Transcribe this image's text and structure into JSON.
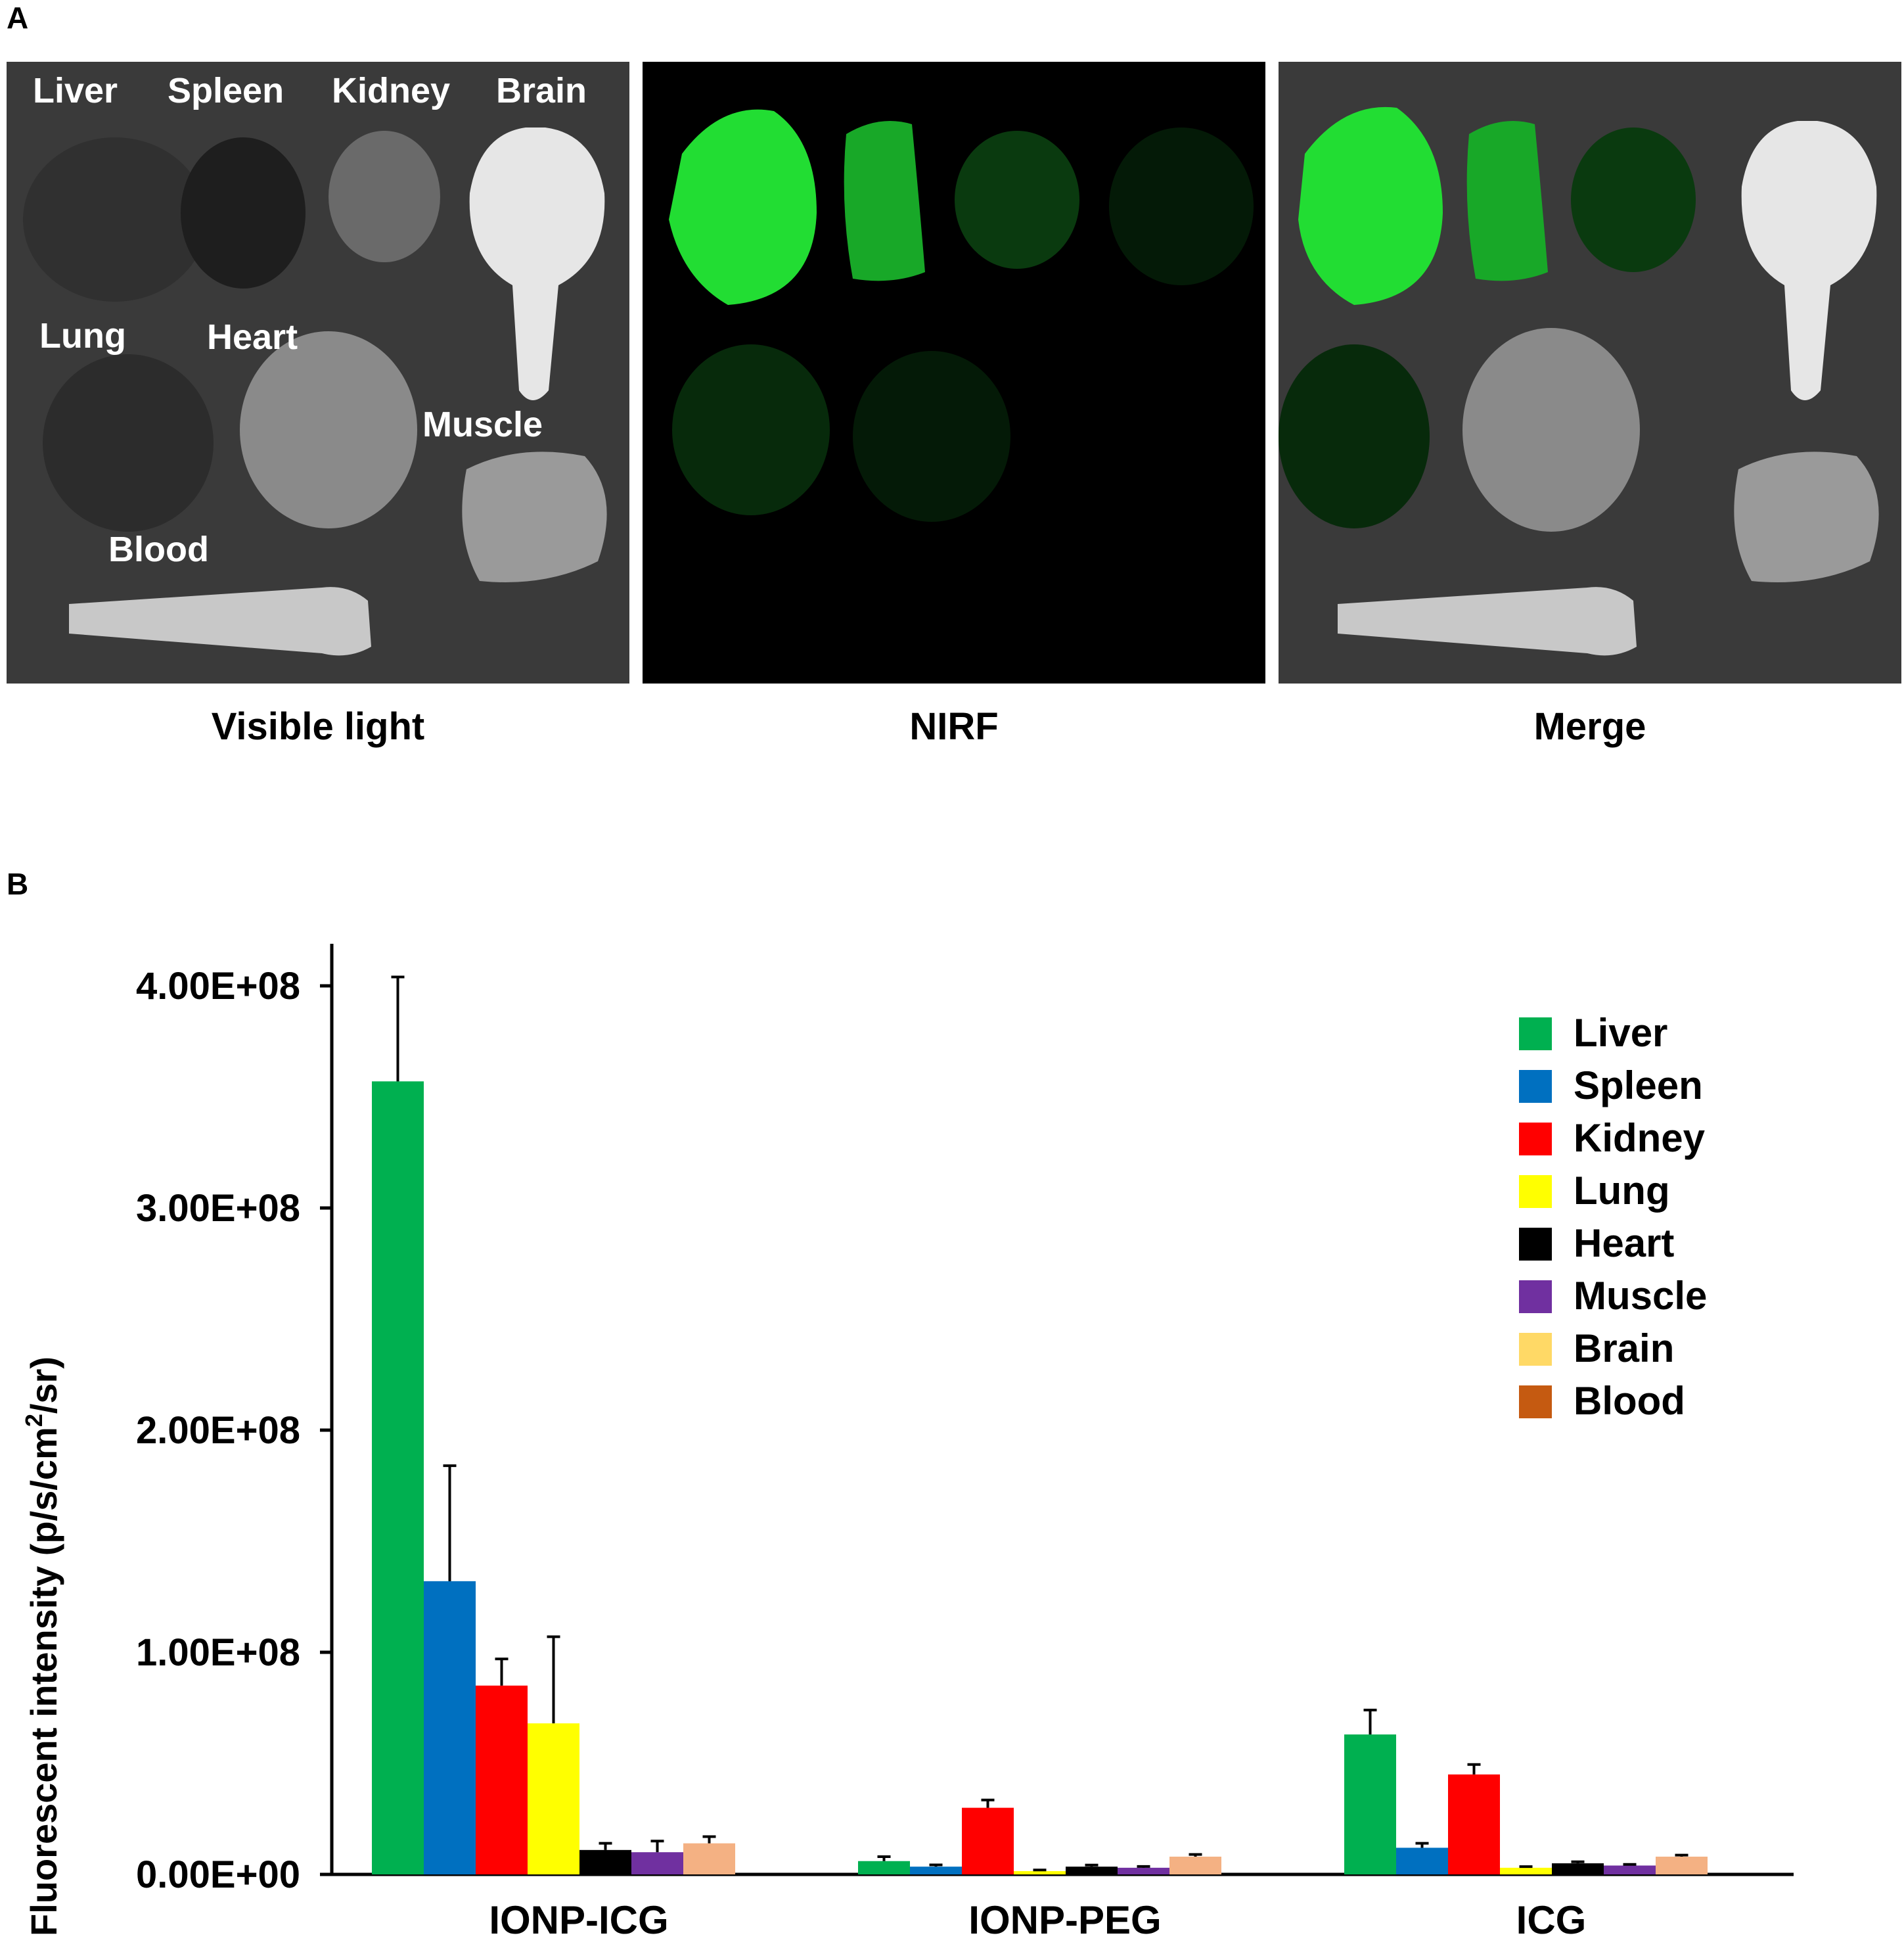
{
  "panel_a": {
    "letter": "A",
    "captions": [
      "Visible light",
      "NIRF",
      "Merge"
    ],
    "organ_labels": {
      "liver": "Liver",
      "spleen": "Spleen",
      "kidney": "Kidney",
      "brain": "Brain",
      "lung": "Lung",
      "heart": "Heart",
      "muscle": "Muscle",
      "blood": "Blood"
    },
    "nirf_color": "#22dd33"
  },
  "panel_b": {
    "letter": "B"
  },
  "chart_data": {
    "type": "bar",
    "ylabel": "Fluorescent intensity (p/s/cm",
    "ylabel_sup": "2",
    "ylabel_end": "/sr)",
    "ylim": [
      0,
      400000000
    ],
    "yticks": [
      0,
      100000000,
      200000000,
      300000000,
      400000000
    ],
    "ytick_labels": [
      "0.00E+00",
      "1.00E+08",
      "2.00E+08",
      "3.00E+08",
      "4.00E+08"
    ],
    "categories": [
      "IONP-ICG",
      "IONP-PEG",
      "ICG"
    ],
    "legend_position": "top-right",
    "series": [
      {
        "name": "Liver",
        "color": "#00b050",
        "values": [
          357000000,
          6000000,
          63000000
        ],
        "errors": [
          47000000,
          2000000,
          11000000
        ]
      },
      {
        "name": "Spleen",
        "color": "#0070c0",
        "values": [
          132000000,
          3500000,
          12000000
        ],
        "errors": [
          52000000,
          800000,
          2000000
        ]
      },
      {
        "name": "Kidney",
        "color": "#ff0000",
        "values": [
          85000000,
          30000000,
          45000000
        ],
        "errors": [
          12000000,
          3500000,
          4500000
        ]
      },
      {
        "name": "Lung",
        "color": "#ffff00",
        "values": [
          68000000,
          1500000,
          3000000
        ],
        "errors": [
          39000000,
          500000,
          500000
        ]
      },
      {
        "name": "Heart",
        "color": "#000000",
        "values": [
          11000000,
          3500000,
          5000000
        ],
        "errors": [
          3000000,
          700000,
          700000
        ]
      },
      {
        "name": "Muscle",
        "color": "#7030a0",
        "values": [
          10000000,
          3000000,
          4000000
        ],
        "errors": [
          5000000,
          600000,
          500000
        ]
      },
      {
        "name": "Brain",
        "color": "#ffd966",
        "values": [
          14000000,
          8000000,
          8000000
        ],
        "errors": [
          3000000,
          1000000,
          700000
        ]
      },
      {
        "name": "Blood",
        "color": "#c55a11",
        "values": [
          null,
          null,
          null
        ],
        "errors": [
          null,
          null,
          null
        ]
      }
    ],
    "bar_fill_override": {
      "Brain": "#f4b183"
    }
  }
}
